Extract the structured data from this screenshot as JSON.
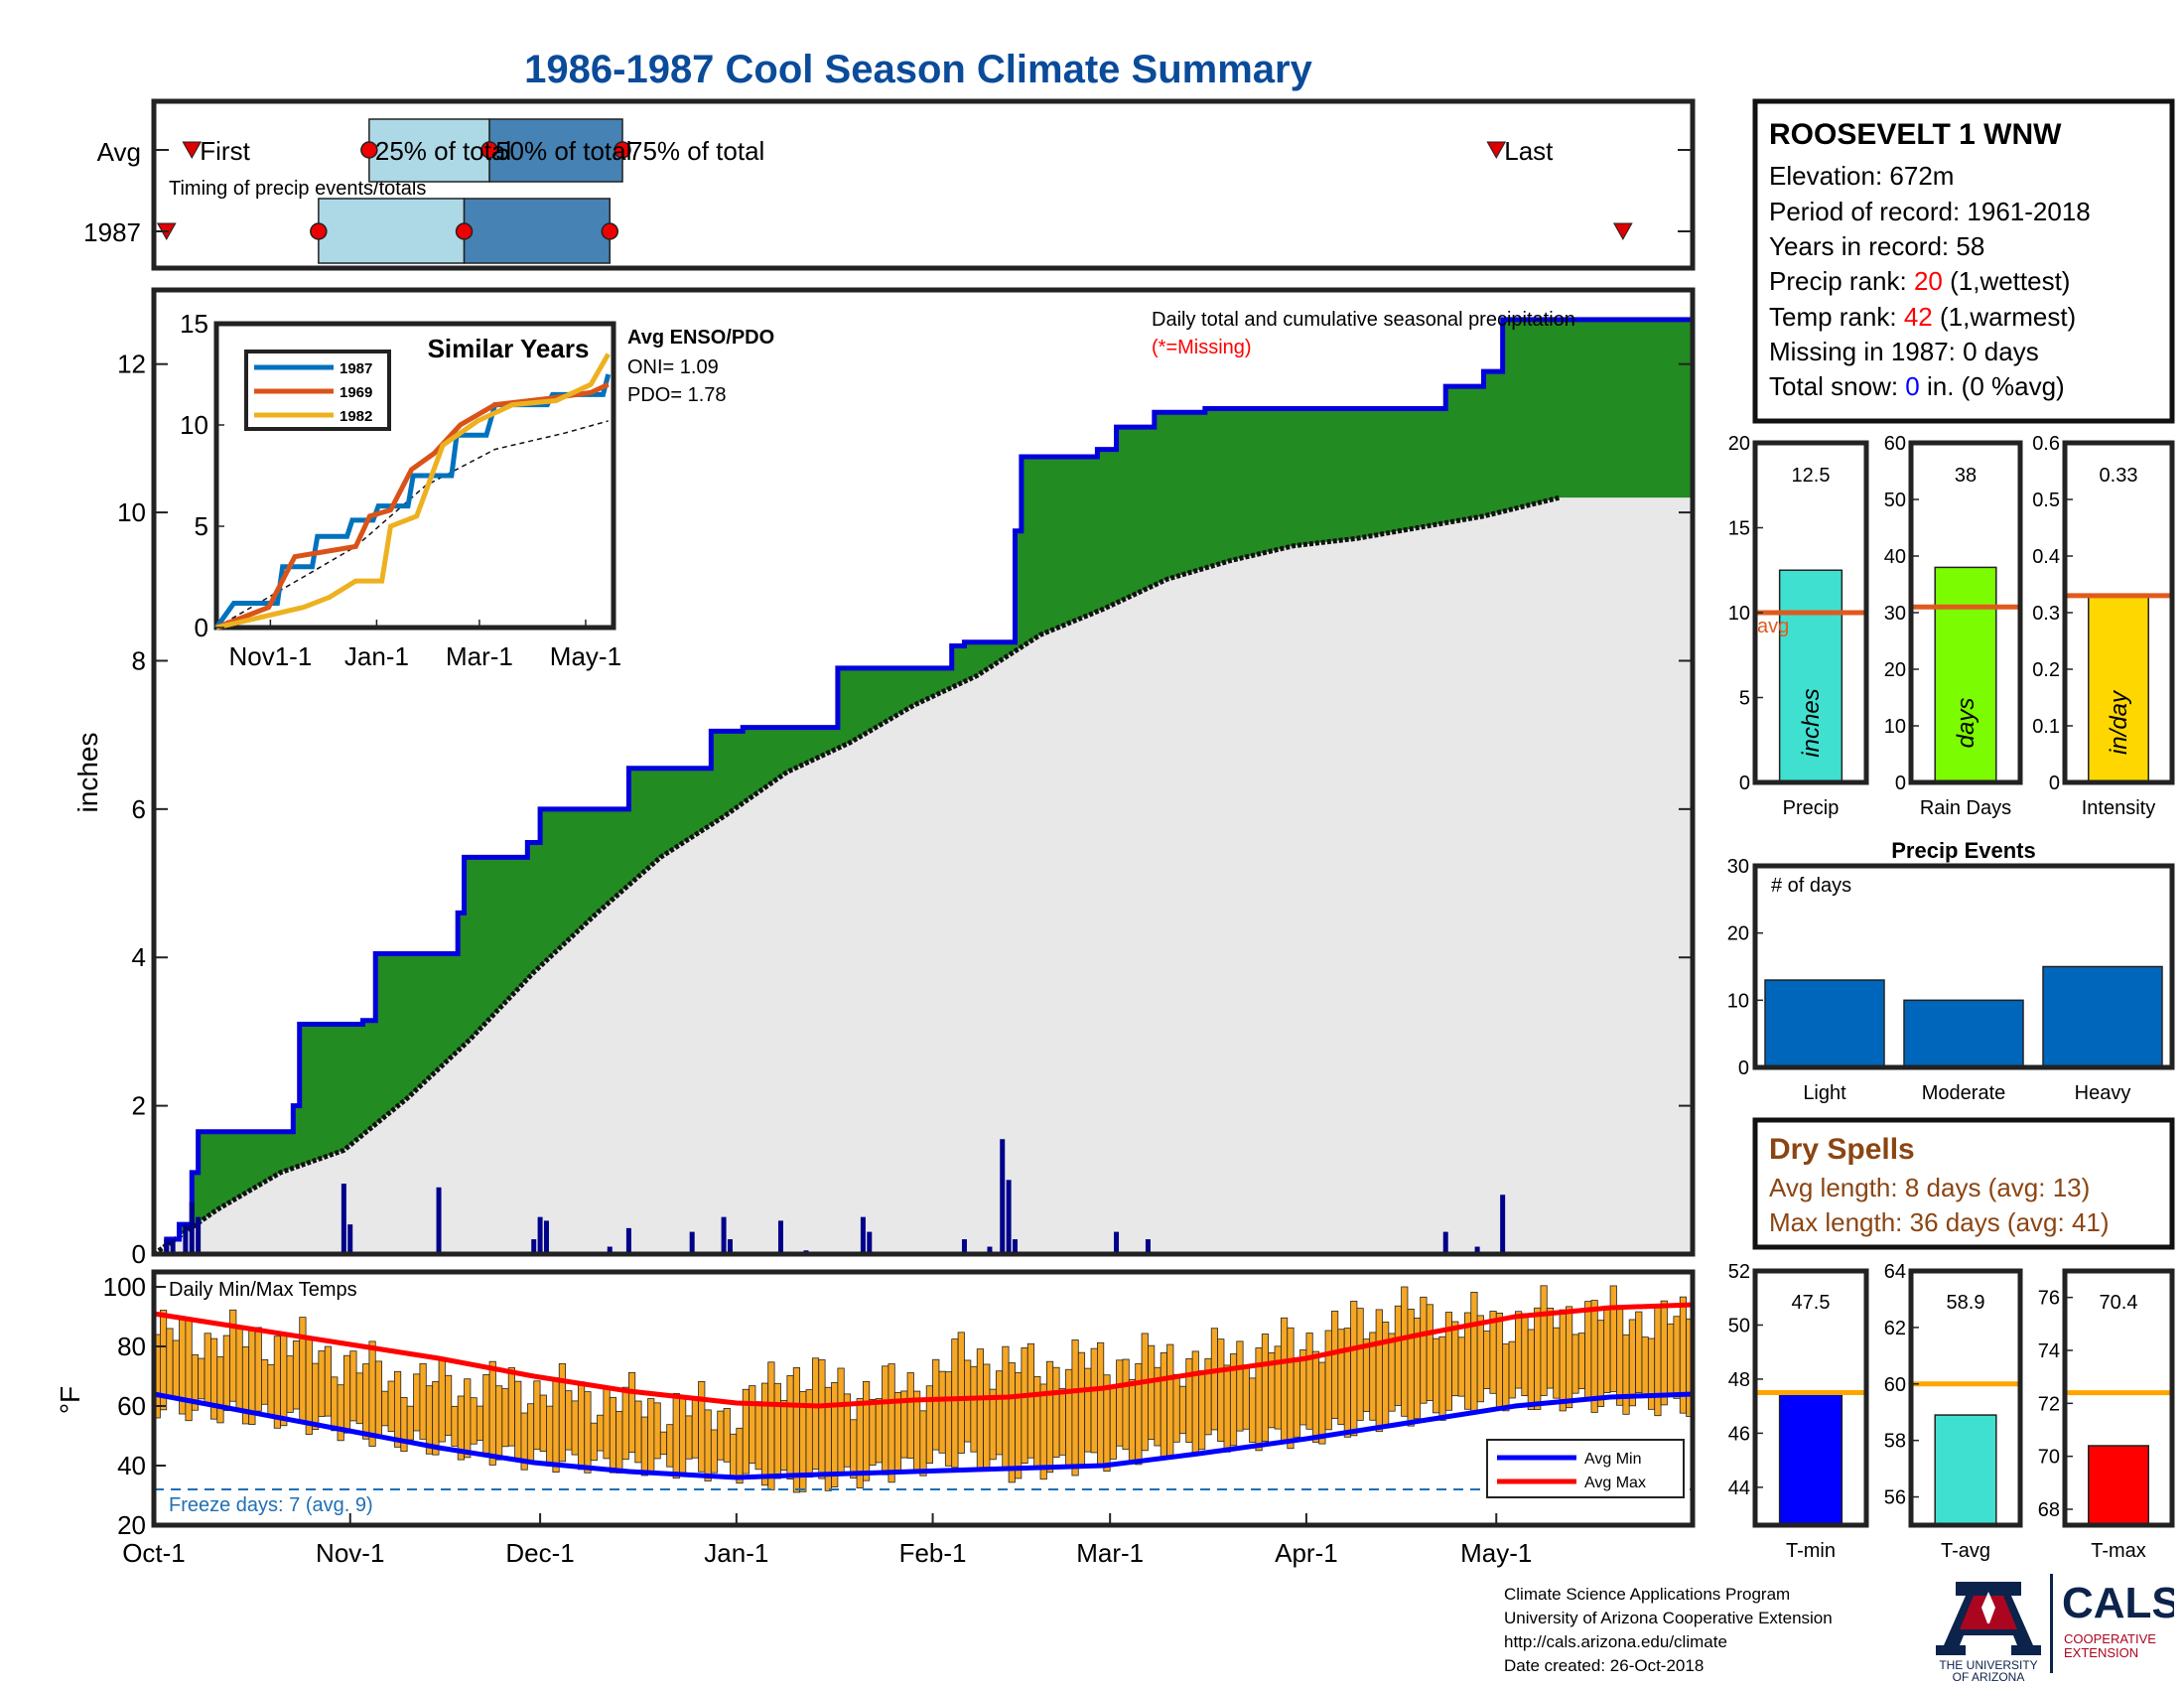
{
  "page": {
    "title": "1986-1987 Cool Season Climate Summary"
  },
  "timing": {
    "label": "Timing of precip events/totals",
    "row_labels": [
      "Avg",
      "1987"
    ],
    "text_first": "First",
    "text_last": "Last",
    "text_25": "25% of total",
    "text_50": "50% of total",
    "text_75": "75% of total",
    "avg_days": {
      "first": 6,
      "p25": 34,
      "p50": 53,
      "p75": 74,
      "last": 212
    },
    "year_days": {
      "first": 2,
      "p25": 26,
      "p50": 49,
      "p75": 72,
      "last": 232
    }
  },
  "station": {
    "name": "ROOSEVELT 1 WNW",
    "elevation": "Elevation: 672m",
    "period": "Period of record: 1961-2018",
    "years": "Years in record: 58",
    "precip_rank_label": "Precip rank: ",
    "precip_rank_value": "20",
    "precip_rank_note": " (1,wettest)",
    "temp_rank_label": "Temp rank: ",
    "temp_rank_value": "42",
    "temp_rank_note": " (1,warmest)",
    "missing": "Missing in 1987: 0 days",
    "snow_label": "Total snow: ",
    "snow_value": "0",
    "snow_note": " in. (0 %avg)"
  },
  "colors": {
    "title_blue": "#0a4b9a",
    "cum_fill": "#228b22",
    "cum_line": "#0000dd",
    "avg_fill": "#e8e8e8",
    "daily_bar": "#00008b",
    "temp_bar": "#f5a623",
    "avg_min": "#0000ff",
    "avg_max": "#ff0000",
    "precip_bar": "#40e0d0",
    "raindays_bar": "#7cfc00",
    "intensity_bar": "#ffd700",
    "avg_line": "#e05a1e",
    "events_bar": "#0066bb",
    "tmin_bar": "#0000ff",
    "tavg_bar": "#40e0d0",
    "tmax_bar": "#ff0000",
    "t_avg_line": "#ffa500",
    "drought_brown": "#8b4513",
    "missing_red": "#ff0000",
    "rank_red": "#ff0000",
    "snow_blue": "#0000ff"
  },
  "chart_data": [
    {
      "type": "area",
      "id": "main_precip",
      "ylabel": "inches",
      "ylim": [
        0,
        13
      ],
      "yticks": [
        0,
        2,
        4,
        6,
        8,
        10,
        12
      ],
      "note": "Daily total and cumulative seasonal precipitation",
      "missing_note": "(*=Missing)",
      "cumulative_1987_steps": [
        {
          "day": 0,
          "value": 0.0
        },
        {
          "day": 2,
          "value": 0.2
        },
        {
          "day": 4,
          "value": 0.4
        },
        {
          "day": 6,
          "value": 1.1
        },
        {
          "day": 7,
          "value": 1.65
        },
        {
          "day": 22,
          "value": 2.0
        },
        {
          "day": 23,
          "value": 3.1
        },
        {
          "day": 33,
          "value": 3.15
        },
        {
          "day": 35,
          "value": 4.05
        },
        {
          "day": 48,
          "value": 4.6
        },
        {
          "day": 49,
          "value": 5.35
        },
        {
          "day": 59,
          "value": 5.55
        },
        {
          "day": 61,
          "value": 6.0
        },
        {
          "day": 75,
          "value": 6.55
        },
        {
          "day": 88,
          "value": 7.05
        },
        {
          "day": 93,
          "value": 7.1
        },
        {
          "day": 108,
          "value": 7.9
        },
        {
          "day": 126,
          "value": 8.2
        },
        {
          "day": 128,
          "value": 8.25
        },
        {
          "day": 136,
          "value": 9.75
        },
        {
          "day": 137,
          "value": 10.75
        },
        {
          "day": 149,
          "value": 10.85
        },
        {
          "day": 152,
          "value": 11.15
        },
        {
          "day": 158,
          "value": 11.35
        },
        {
          "day": 166,
          "value": 11.4
        },
        {
          "day": 200,
          "value": 11.4
        },
        {
          "day": 204,
          "value": 11.7
        },
        {
          "day": 209,
          "value": 11.7
        },
        {
          "day": 210,
          "value": 11.9
        },
        {
          "day": 213,
          "value": 12.6
        },
        {
          "day": 222,
          "value": 12.6
        }
      ],
      "average_cumulative": [
        {
          "day": 0,
          "value": 0.0
        },
        {
          "day": 5,
          "value": 0.3
        },
        {
          "day": 10,
          "value": 0.6
        },
        {
          "day": 20,
          "value": 1.1
        },
        {
          "day": 30,
          "value": 1.4
        },
        {
          "day": 40,
          "value": 2.1
        },
        {
          "day": 50,
          "value": 2.9
        },
        {
          "day": 60,
          "value": 3.8
        },
        {
          "day": 70,
          "value": 4.6
        },
        {
          "day": 80,
          "value": 5.35
        },
        {
          "day": 90,
          "value": 5.9
        },
        {
          "day": 100,
          "value": 6.5
        },
        {
          "day": 110,
          "value": 6.9
        },
        {
          "day": 120,
          "value": 7.4
        },
        {
          "day": 130,
          "value": 7.8
        },
        {
          "day": 140,
          "value": 8.35
        },
        {
          "day": 150,
          "value": 8.7
        },
        {
          "day": 160,
          "value": 9.1
        },
        {
          "day": 170,
          "value": 9.35
        },
        {
          "day": 180,
          "value": 9.55
        },
        {
          "day": 190,
          "value": 9.65
        },
        {
          "day": 200,
          "value": 9.8
        },
        {
          "day": 210,
          "value": 9.95
        },
        {
          "day": 222,
          "value": 10.2
        }
      ],
      "daily_totals": [
        {
          "day": 2,
          "value": 0.2
        },
        {
          "day": 3,
          "value": 0.2
        },
        {
          "day": 5,
          "value": 0.4
        },
        {
          "day": 6,
          "value": 0.7
        },
        {
          "day": 7,
          "value": 0.5
        },
        {
          "day": 30,
          "value": 0.95
        },
        {
          "day": 31,
          "value": 0.4
        },
        {
          "day": 45,
          "value": 0.9
        },
        {
          "day": 60,
          "value": 0.2
        },
        {
          "day": 61,
          "value": 0.5
        },
        {
          "day": 62,
          "value": 0.45
        },
        {
          "day": 72,
          "value": 0.1
        },
        {
          "day": 75,
          "value": 0.35
        },
        {
          "day": 85,
          "value": 0.3
        },
        {
          "day": 90,
          "value": 0.5
        },
        {
          "day": 91,
          "value": 0.2
        },
        {
          "day": 99,
          "value": 0.45
        },
        {
          "day": 103,
          "value": 0.05
        },
        {
          "day": 112,
          "value": 0.5
        },
        {
          "day": 113,
          "value": 0.3
        },
        {
          "day": 128,
          "value": 0.2
        },
        {
          "day": 132,
          "value": 0.1
        },
        {
          "day": 134,
          "value": 1.55
        },
        {
          "day": 135,
          "value": 1.0
        },
        {
          "day": 136,
          "value": 0.2
        },
        {
          "day": 152,
          "value": 0.3
        },
        {
          "day": 157,
          "value": 0.2
        },
        {
          "day": 204,
          "value": 0.3
        },
        {
          "day": 209,
          "value": 0.1
        },
        {
          "day": 213,
          "value": 0.8
        }
      ],
      "total_days": 243
    },
    {
      "type": "line",
      "id": "similar_years",
      "title": "Similar Years",
      "x_tick_labels": [
        "Nov1-1",
        "Jan-1",
        "Mar-1",
        "May-1"
      ],
      "x_ticks": [
        31,
        92,
        151,
        212
      ],
      "yticks": [
        0,
        5,
        10,
        15
      ],
      "ylim": [
        0,
        15
      ],
      "enso_title": "Avg ENSO/PDO",
      "oni": "ONI= 1.09",
      "pdo": "PDO= 1.78",
      "series": [
        {
          "name": "1987",
          "color": "#0072bd",
          "points": [
            [
              0,
              0
            ],
            [
              10,
              1.2
            ],
            [
              35,
              1.2
            ],
            [
              38,
              3
            ],
            [
              55,
              3
            ],
            [
              58,
              4.5
            ],
            [
              75,
              4.5
            ],
            [
              78,
              5.3
            ],
            [
              90,
              5.3
            ],
            [
              93,
              6
            ],
            [
              110,
              6
            ],
            [
              113,
              7.5
            ],
            [
              135,
              7.5
            ],
            [
              138,
              9.5
            ],
            [
              155,
              9.5
            ],
            [
              160,
              11
            ],
            [
              190,
              11
            ],
            [
              193,
              11.5
            ],
            [
              222,
              11.5
            ],
            [
              225,
              12.5
            ]
          ]
        },
        {
          "name": "1969",
          "color": "#d95319",
          "points": [
            [
              0,
              0
            ],
            [
              30,
              1
            ],
            [
              45,
              3.5
            ],
            [
              80,
              4
            ],
            [
              88,
              5.5
            ],
            [
              100,
              5.8
            ],
            [
              112,
              7.8
            ],
            [
              125,
              8.6
            ],
            [
              140,
              10
            ],
            [
              160,
              11
            ],
            [
              190,
              11.3
            ],
            [
              215,
              11.6
            ],
            [
              225,
              12
            ]
          ]
        },
        {
          "name": "1982",
          "color": "#edb120",
          "points": [
            [
              0,
              0
            ],
            [
              50,
              1
            ],
            [
              65,
              1.5
            ],
            [
              80,
              2.3
            ],
            [
              95,
              2.3
            ],
            [
              100,
              5
            ],
            [
              115,
              5.5
            ],
            [
              130,
              9
            ],
            [
              150,
              10.2
            ],
            [
              170,
              11
            ],
            [
              195,
              11.2
            ],
            [
              215,
              12
            ],
            [
              225,
              13.5
            ]
          ]
        }
      ],
      "average_points": [
        [
          0,
          0
        ],
        [
          40,
          2
        ],
        [
          80,
          4
        ],
        [
          120,
          7
        ],
        [
          160,
          8.8
        ],
        [
          200,
          9.6
        ],
        [
          225,
          10.2
        ]
      ]
    },
    {
      "type": "bar",
      "id": "daily_temps",
      "title": "Daily Min/Max Temps",
      "ylabel": "°F",
      "ylim": [
        20,
        105
      ],
      "yticks": [
        20,
        40,
        60,
        80,
        100
      ],
      "x_tick_labels": [
        "Oct-1",
        "Nov-1",
        "Dec-1",
        "Jan-1",
        "Feb-1",
        "Mar-1",
        "Apr-1",
        "May-1"
      ],
      "x_ticks": [
        0,
        31,
        61,
        92,
        123,
        151,
        182,
        212
      ],
      "freeze_label": "Freeze days: 7 (avg. 9)",
      "freeze_line": 32,
      "legend": [
        "Avg Min",
        "Avg Max"
      ],
      "avg_max_points": [
        [
          0,
          91
        ],
        [
          15,
          86
        ],
        [
          30,
          81
        ],
        [
          45,
          76
        ],
        [
          60,
          70
        ],
        [
          75,
          65
        ],
        [
          92,
          61
        ],
        [
          105,
          60
        ],
        [
          120,
          62
        ],
        [
          135,
          63
        ],
        [
          150,
          66
        ],
        [
          165,
          71
        ],
        [
          182,
          76
        ],
        [
          200,
          84
        ],
        [
          215,
          90
        ],
        [
          230,
          93
        ],
        [
          243,
          94
        ]
      ],
      "avg_min_points": [
        [
          0,
          64
        ],
        [
          15,
          58
        ],
        [
          30,
          52
        ],
        [
          45,
          46
        ],
        [
          60,
          41
        ],
        [
          75,
          38
        ],
        [
          92,
          36
        ],
        [
          105,
          37
        ],
        [
          120,
          38
        ],
        [
          135,
          39
        ],
        [
          150,
          40
        ],
        [
          165,
          44
        ],
        [
          182,
          49
        ],
        [
          200,
          55
        ],
        [
          215,
          60
        ],
        [
          230,
          63
        ],
        [
          243,
          64
        ]
      ],
      "daily_max_anchors": [
        [
          0,
          84
        ],
        [
          20,
          82
        ],
        [
          40,
          68
        ],
        [
          60,
          66
        ],
        [
          80,
          60
        ],
        [
          92,
          58
        ],
        [
          100,
          72
        ],
        [
          110,
          65
        ],
        [
          120,
          67
        ],
        [
          128,
          78
        ],
        [
          135,
          73
        ],
        [
          150,
          75
        ],
        [
          165,
          76
        ],
        [
          182,
          82
        ],
        [
          195,
          92
        ],
        [
          210,
          88
        ],
        [
          225,
          92
        ],
        [
          243,
          88
        ]
      ],
      "daily_min_anchors": [
        [
          0,
          60
        ],
        [
          20,
          56
        ],
        [
          40,
          48
        ],
        [
          60,
          42
        ],
        [
          80,
          40
        ],
        [
          92,
          38
        ],
        [
          100,
          34
        ],
        [
          110,
          36
        ],
        [
          120,
          40
        ],
        [
          128,
          44
        ],
        [
          135,
          38
        ],
        [
          150,
          42
        ],
        [
          165,
          48
        ],
        [
          182,
          50
        ],
        [
          195,
          56
        ],
        [
          210,
          62
        ],
        [
          225,
          62
        ],
        [
          243,
          60
        ]
      ]
    },
    {
      "type": "bar",
      "id": "precip_total",
      "xlabel": "Precip",
      "unit": "inches",
      "value": 12.5,
      "value_label": "12.5",
      "avg": 10,
      "avg_label": "avg",
      "ylim": [
        0,
        20
      ],
      "yticks": [
        0,
        5,
        10,
        15,
        20
      ]
    },
    {
      "type": "bar",
      "id": "rain_days",
      "xlabel": "Rain Days",
      "unit": "days",
      "value": 38,
      "value_label": "38",
      "avg": 31,
      "ylim": [
        0,
        60
      ],
      "yticks": [
        0,
        10,
        20,
        30,
        40,
        50,
        60
      ]
    },
    {
      "type": "bar",
      "id": "intensity",
      "xlabel": "Intensity",
      "unit": "in/day",
      "value": 0.33,
      "value_label": "0.33",
      "avg": 0.33,
      "ylim": [
        0,
        0.6
      ],
      "yticks": [
        0,
        0.1,
        0.2,
        0.3,
        0.4,
        0.5,
        0.6
      ],
      "ytick_labels": [
        "0",
        "0.1",
        "0.2",
        "0.3",
        "0.4",
        "0.5",
        "0.6"
      ]
    },
    {
      "type": "bar",
      "id": "precip_events",
      "title": "Precip Events",
      "ylabel": "# of days",
      "categories": [
        "Light",
        "Moderate",
        "Heavy"
      ],
      "values": [
        13,
        10,
        15
      ],
      "ylim": [
        0,
        30
      ],
      "yticks": [
        0,
        10,
        20,
        30
      ]
    },
    {
      "type": "bar",
      "id": "t_min",
      "xlabel": "T-min",
      "value": 47.5,
      "value_label": "47.5",
      "avg": 47.5,
      "ylim": [
        42.6,
        52
      ],
      "yticks": [
        44,
        46,
        48,
        50,
        52
      ]
    },
    {
      "type": "bar",
      "id": "t_avg",
      "xlabel": "T-avg",
      "value": 58.9,
      "value_label": "58.9",
      "avg": 60,
      "ylim": [
        55,
        64
      ],
      "yticks": [
        56,
        58,
        60,
        62,
        64
      ]
    },
    {
      "type": "bar",
      "id": "t_max",
      "xlabel": "T-max",
      "value": 70.4,
      "value_label": "70.4",
      "avg": 72.4,
      "ylim": [
        67.4,
        77
      ],
      "yticks": [
        68,
        70,
        72,
        74,
        76
      ]
    }
  ],
  "dry_spells": {
    "title": "Dry Spells",
    "avg_length": "Avg length: 8 days (avg: 13)",
    "max_length": "Max length: 36 days (avg: 41)"
  },
  "footer": {
    "line1": "Climate Science Applications Program",
    "line2": "University of Arizona Cooperative Extension",
    "line3": "http://cals.arizona.edu/climate",
    "line4": " Date created: 26-Oct-2018",
    "ua_line1": "THE UNIVERSITY",
    "ua_line2": "OF ARIZONA",
    "cals": "CALS",
    "cals_line1": "COOPERATIVE",
    "cals_line2": "EXTENSION"
  }
}
